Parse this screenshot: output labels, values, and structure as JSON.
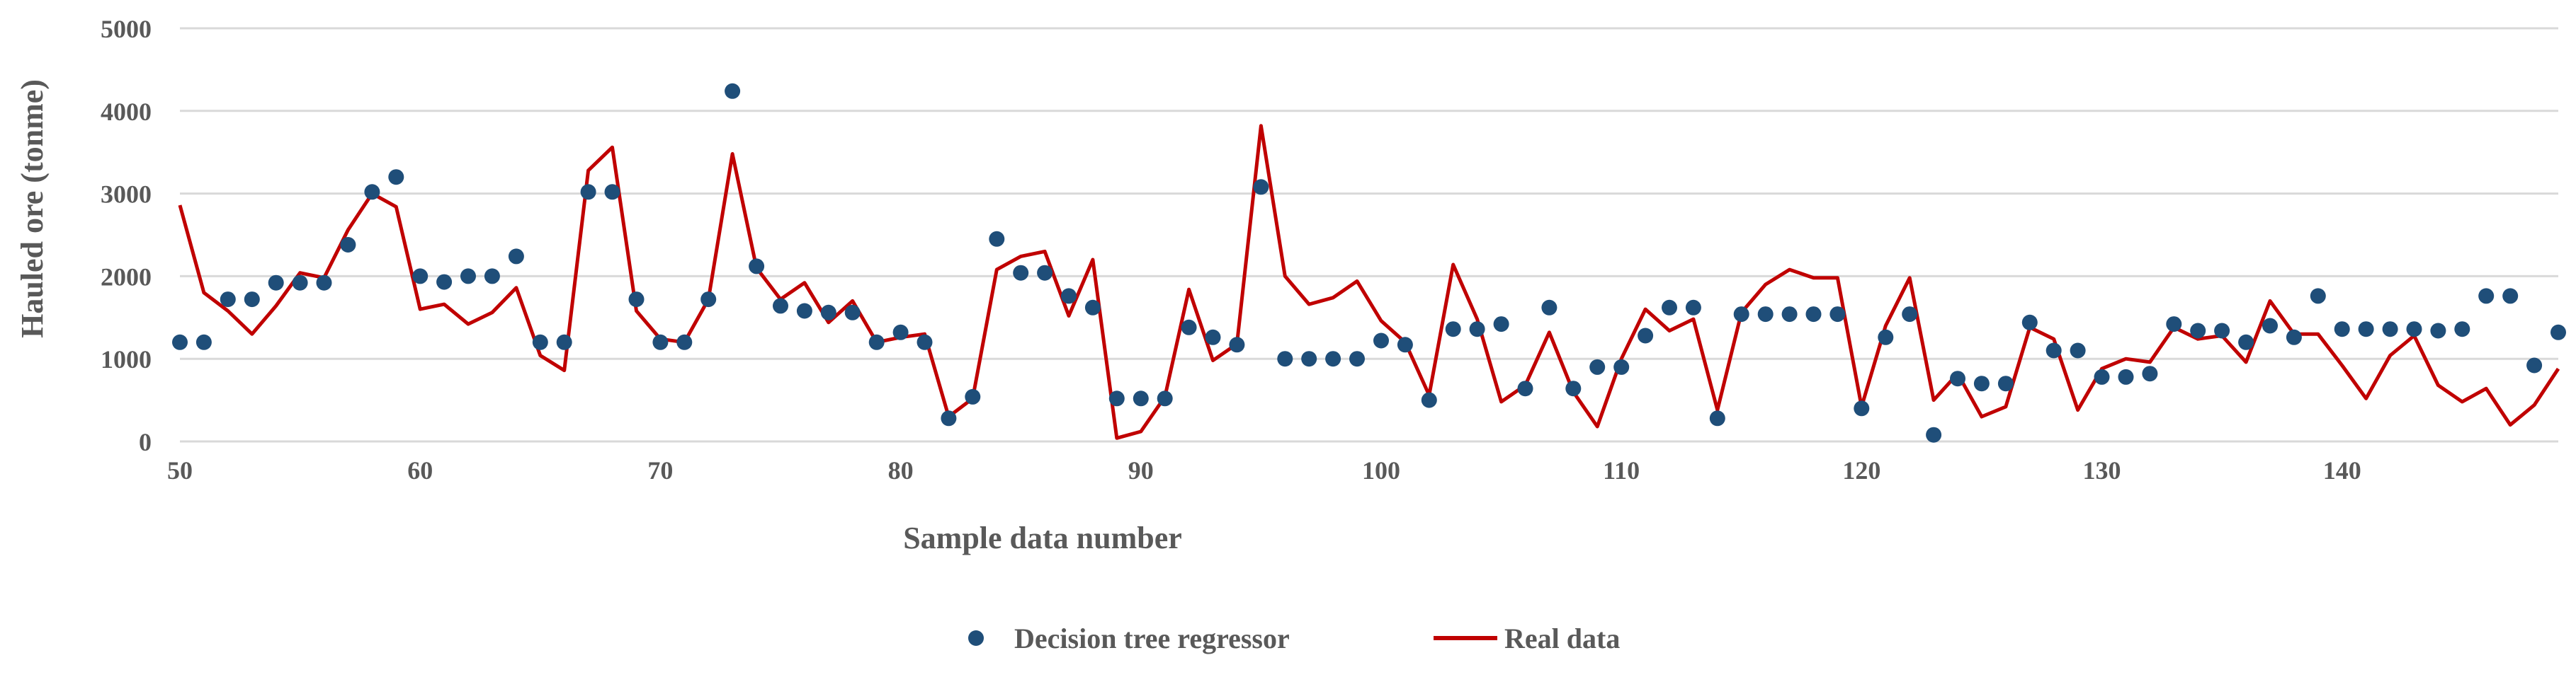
{
  "chart_data": {
    "type": "line+scatter",
    "xlabel": "Sample data number",
    "ylabel": "Hauled ore (tonme)",
    "xlim": [
      50,
      149
    ],
    "ylim": [
      0,
      5000
    ],
    "xticks": [
      50,
      60,
      70,
      80,
      90,
      100,
      110,
      120,
      130,
      140
    ],
    "yticks": [
      0,
      1000,
      2000,
      3000,
      4000,
      5000
    ],
    "grid": "horizontal",
    "legend_position": "bottom-center",
    "colors": {
      "scatter": "#1f4e79",
      "line": "#c00000",
      "grid": "#d9d9d9",
      "axis": "#d9d9d9"
    },
    "series": [
      {
        "name": "Decision tree regressor",
        "kind": "scatter",
        "x": [
          50,
          51,
          52,
          53,
          54,
          55,
          56,
          57,
          58,
          59,
          60,
          61,
          62,
          63,
          64,
          65,
          66,
          67,
          68,
          69,
          70,
          71,
          72,
          73,
          74,
          75,
          76,
          77,
          78,
          79,
          80,
          81,
          82,
          83,
          84,
          85,
          86,
          87,
          88,
          89,
          90,
          91,
          92,
          93,
          94,
          95,
          96,
          97,
          98,
          99,
          100,
          101,
          102,
          103,
          104,
          105,
          106,
          107,
          108,
          109,
          110,
          111,
          112,
          113,
          114,
          115,
          116,
          117,
          118,
          119,
          120,
          121,
          122,
          123,
          124,
          125,
          126,
          127,
          128,
          129,
          130,
          131,
          132,
          133,
          134,
          135,
          136,
          137,
          138,
          139,
          140,
          141,
          142,
          143,
          144,
          145,
          146,
          147,
          148,
          149
        ],
        "y": [
          1200,
          1200,
          1720,
          1720,
          1920,
          1920,
          1920,
          2380,
          3020,
          3200,
          2000,
          1930,
          2000,
          2000,
          2240,
          1200,
          1200,
          3020,
          3020,
          1720,
          1200,
          1200,
          1720,
          4240,
          2120,
          1640,
          1580,
          1560,
          1560,
          1200,
          1320,
          1200,
          280,
          540,
          2450,
          2040,
          2040,
          1760,
          1620,
          520,
          520,
          520,
          1380,
          1260,
          1170,
          3080,
          1000,
          1000,
          1000,
          1000,
          1220,
          1170,
          500,
          1360,
          1360,
          1420,
          640,
          1620,
          640,
          900,
          900,
          1280,
          1620,
          1620,
          280,
          1540,
          1540,
          1540,
          1540,
          1540,
          400,
          1260,
          1540,
          80,
          760,
          700,
          700,
          1440,
          1100,
          1100,
          780,
          780,
          820,
          1420,
          1340,
          1340,
          1200,
          1400,
          1260,
          1760,
          1360,
          1360,
          1360,
          1360,
          1340,
          1360,
          1760,
          1760,
          920,
          1320
        ]
      },
      {
        "name": "Real data",
        "kind": "line",
        "x": [
          50,
          51,
          52,
          53,
          54,
          55,
          56,
          57,
          58,
          59,
          60,
          61,
          62,
          63,
          64,
          65,
          66,
          67,
          68,
          69,
          70,
          71,
          72,
          73,
          74,
          75,
          76,
          77,
          78,
          79,
          80,
          81,
          82,
          83,
          84,
          85,
          86,
          87,
          88,
          89,
          90,
          91,
          92,
          93,
          94,
          95,
          96,
          97,
          98,
          99,
          100,
          101,
          102,
          103,
          104,
          105,
          106,
          107,
          108,
          109,
          110,
          111,
          112,
          113,
          114,
          115,
          116,
          117,
          118,
          119,
          120,
          121,
          122,
          123,
          124,
          125,
          126,
          127,
          128,
          129,
          130,
          131,
          132,
          133,
          134,
          135,
          136,
          137,
          138,
          139,
          140,
          141,
          142,
          143,
          144,
          145,
          146,
          147,
          148,
          149
        ],
        "y": [
          2860,
          1800,
          1580,
          1300,
          1640,
          2040,
          1980,
          2560,
          3000,
          2840,
          1600,
          1660,
          1420,
          1560,
          1860,
          1040,
          860,
          3280,
          3560,
          1580,
          1240,
          1200,
          1720,
          3480,
          2100,
          1720,
          1920,
          1440,
          1700,
          1200,
          1260,
          1300,
          300,
          520,
          2080,
          2240,
          2300,
          1520,
          2200,
          40,
          120,
          540,
          1840,
          980,
          1180,
          3820,
          2000,
          1660,
          1740,
          1940,
          1460,
          1200,
          560,
          2140,
          1480,
          480,
          680,
          1320,
          600,
          180,
          1000,
          1600,
          1340,
          1480,
          380,
          1560,
          1900,
          2080,
          1980,
          1980,
          420,
          1400,
          1980,
          500,
          820,
          300,
          420,
          1380,
          1240,
          380,
          880,
          1000,
          960,
          1380,
          1240,
          1280,
          960,
          1700,
          1300,
          1300,
          920,
          520,
          1040,
          1280,
          680,
          480,
          640,
          200,
          440,
          880
        ]
      }
    ]
  },
  "legend": {
    "scatter_label": "Decision tree regressor",
    "line_label": "Real data"
  },
  "axes": {
    "xlabel": "Sample data number",
    "ylabel": "Hauled ore (tonme)"
  }
}
